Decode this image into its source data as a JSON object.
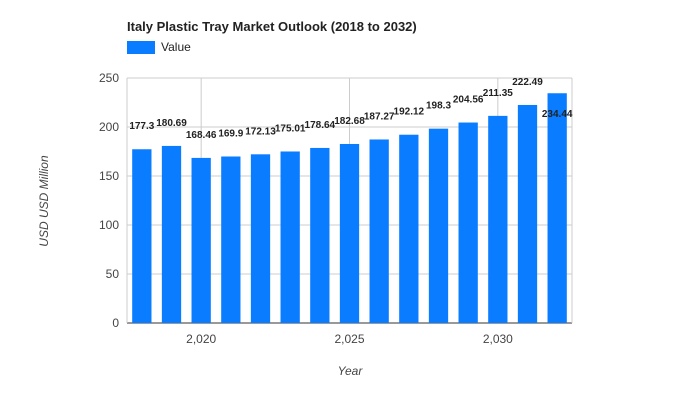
{
  "chart_data": {
    "type": "bar",
    "title": "Italy Plastic Tray Market Outlook (2018 to 2032)",
    "legend": "Value",
    "xlabel": "Year",
    "ylabel": "USD USD Million",
    "x": [
      2018,
      2019,
      2020,
      2021,
      2022,
      2023,
      2024,
      2025,
      2026,
      2027,
      2028,
      2029,
      2030,
      2031,
      2032
    ],
    "values": [
      177.3,
      180.69,
      168.46,
      169.9,
      172.13,
      175.01,
      178.64,
      182.68,
      187.27,
      192.12,
      198.3,
      204.56,
      211.35,
      222.49,
      234.44
    ],
    "labels": [
      "177.3",
      "180.69",
      "168.46",
      "169.9",
      "172.13",
      "175.01",
      "178.64",
      "182.68",
      "187.27",
      "192.12",
      "198.3",
      "204.56",
      "211.35",
      "222.49",
      "234.44"
    ],
    "ylim": [
      0,
      250
    ],
    "yticks": [
      0,
      50,
      100,
      150,
      200,
      250
    ],
    "xticks": [
      {
        "value": 2020,
        "label": "2,020"
      },
      {
        "value": 2025,
        "label": "2,025"
      },
      {
        "value": 2030,
        "label": "2,030"
      }
    ],
    "color": "#0a7cff",
    "grid": true,
    "legend_position": "top-left"
  }
}
